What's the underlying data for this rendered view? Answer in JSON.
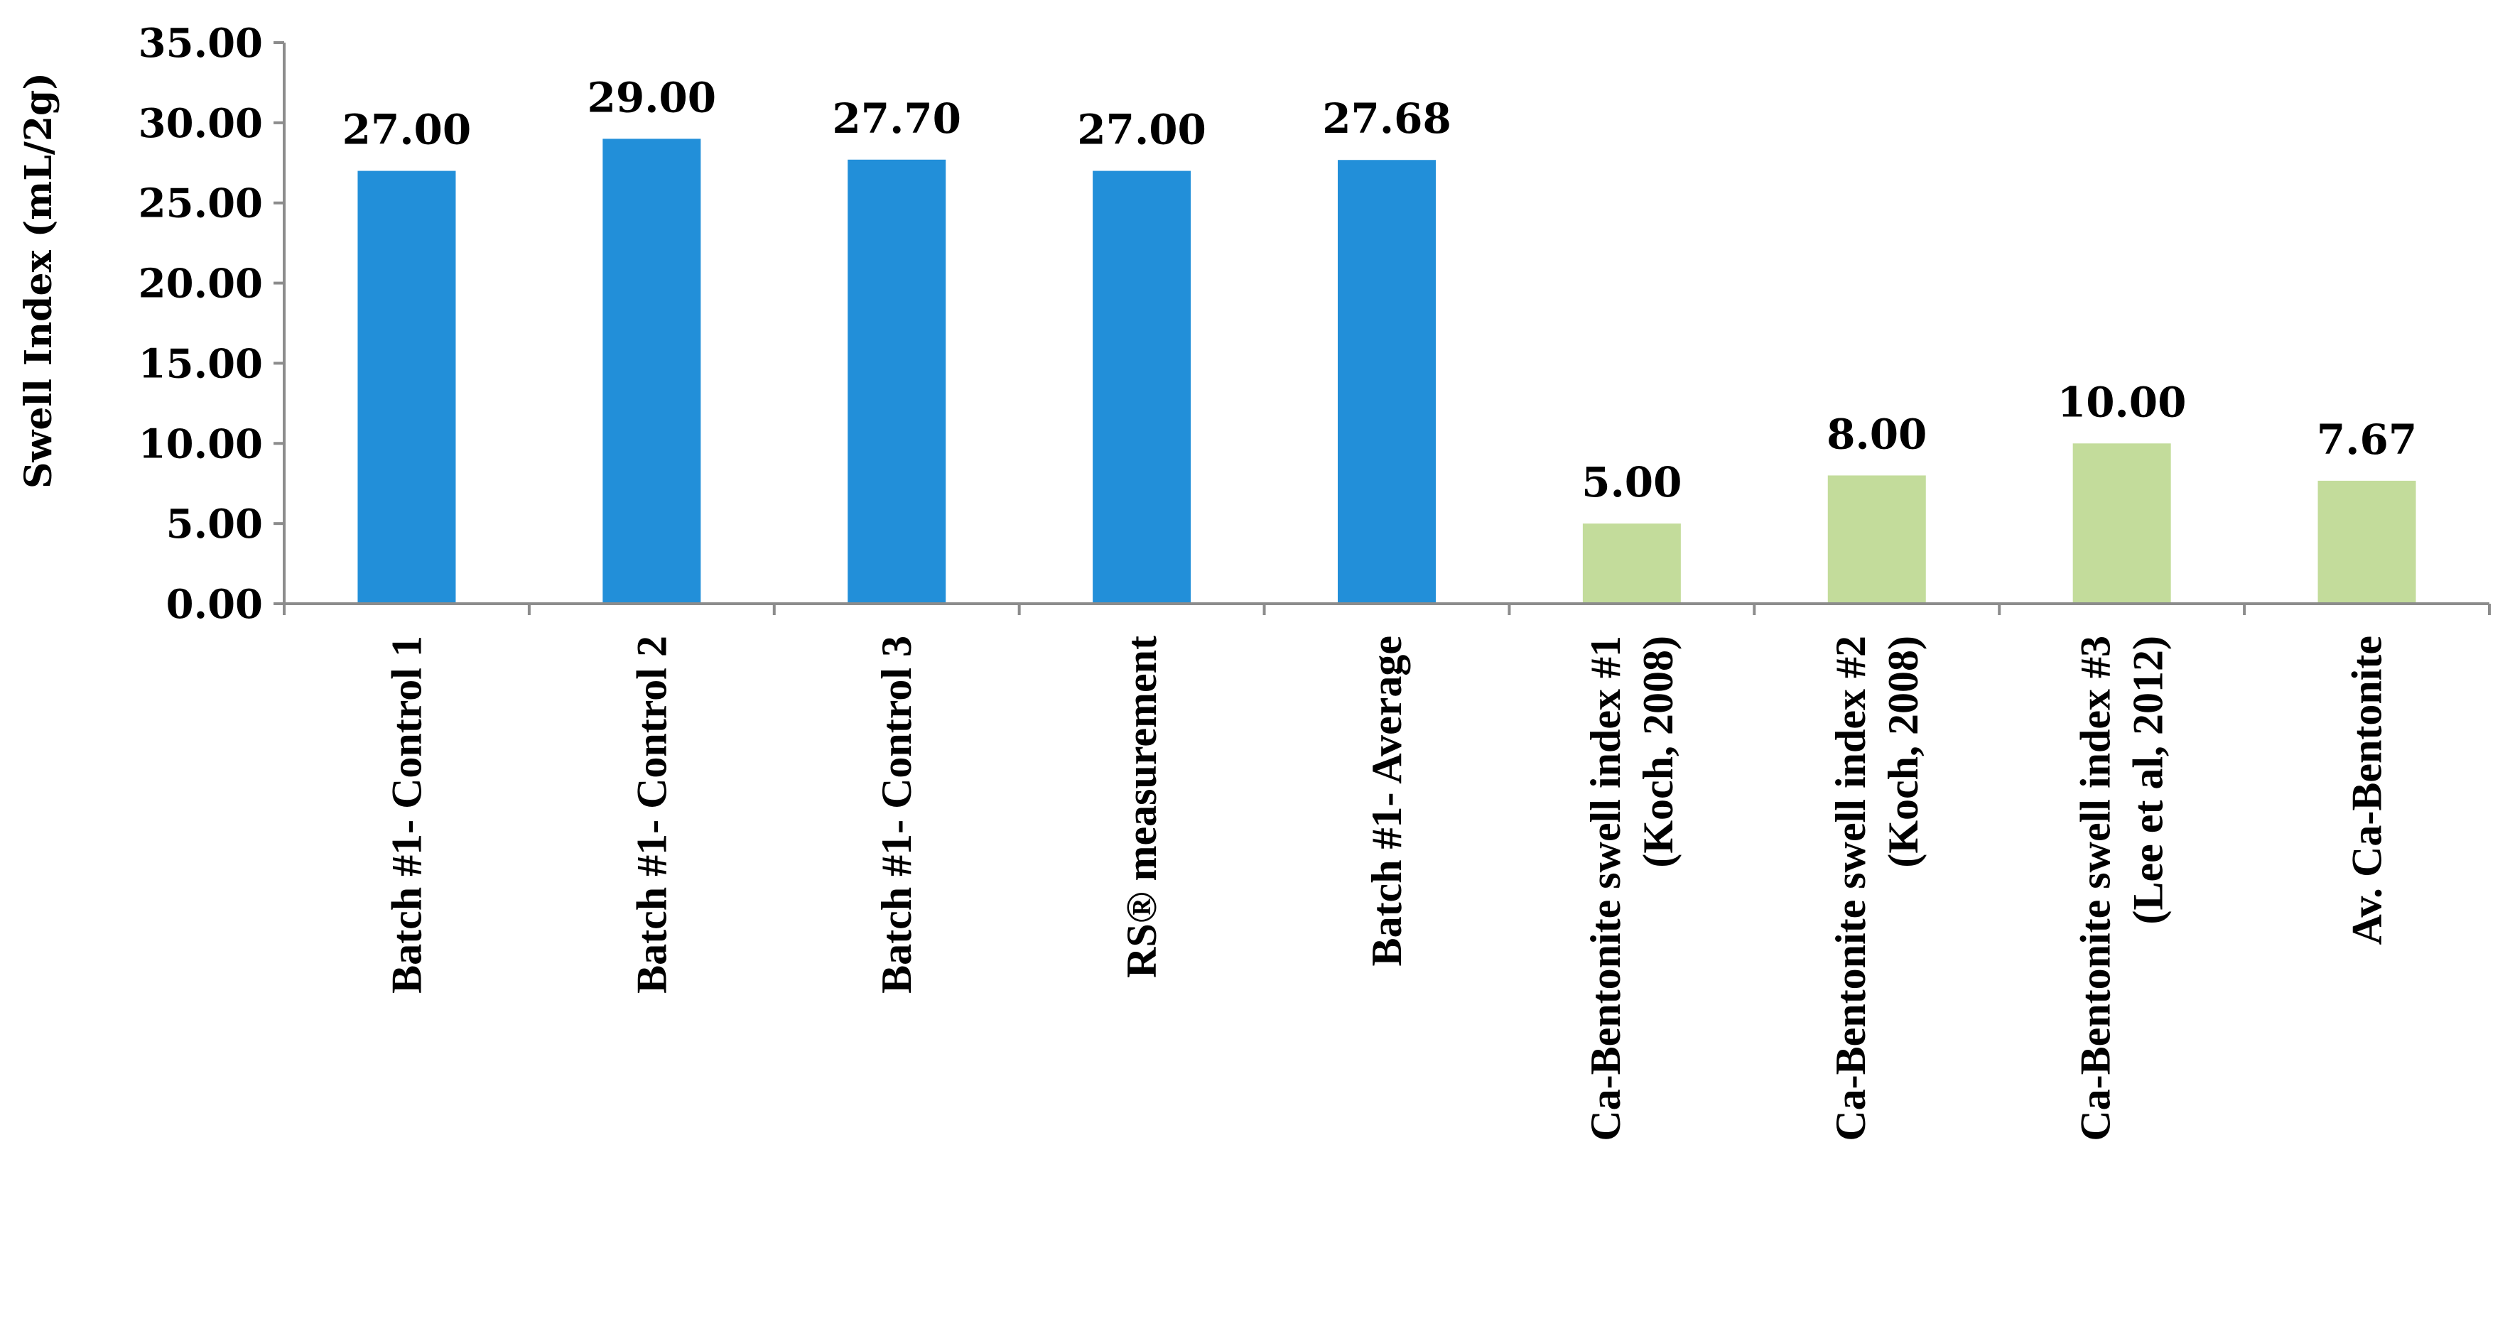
{
  "chart_data": {
    "type": "bar",
    "title": "",
    "xlabel": "",
    "ylabel": "Swell Index (mL/2g)",
    "ylim": [
      0,
      35
    ],
    "ytick_step": 5,
    "ytick_labels": [
      "0.00",
      "5.00",
      "10.00",
      "15.00",
      "20.00",
      "25.00",
      "30.00",
      "35.00"
    ],
    "grid": false,
    "legend": "none",
    "categories": [
      [
        "Batch #1- Control 1"
      ],
      [
        "Batch #1- Control 2"
      ],
      [
        "Batch #1- Control 3"
      ],
      [
        "RS® measurement"
      ],
      [
        "Batch #1- Average"
      ],
      [
        "Ca-Bentonite swell index #1",
        "(Koch, 2008)"
      ],
      [
        "Ca-Bentonite swell index #2",
        "(Koch, 2008)"
      ],
      [
        "Ca-Bentonite swell index #3",
        "(Lee et al, 2012)"
      ],
      [
        "Av. Ca-Bentonite"
      ]
    ],
    "values": [
      27.0,
      29.0,
      27.7,
      27.0,
      27.68,
      5.0,
      8.0,
      10.0,
      7.67
    ],
    "data_labels": [
      "27.00",
      "29.00",
      "27.70",
      "27.00",
      "27.68",
      "5.00",
      "8.00",
      "10.00",
      "7.67"
    ],
    "bar_colors": [
      "#228fd9",
      "#228fd9",
      "#228fd9",
      "#228fd9",
      "#228fd9",
      "#c3dc9b",
      "#c3dc9b",
      "#c3dc9b",
      "#c3dc9b"
    ]
  }
}
